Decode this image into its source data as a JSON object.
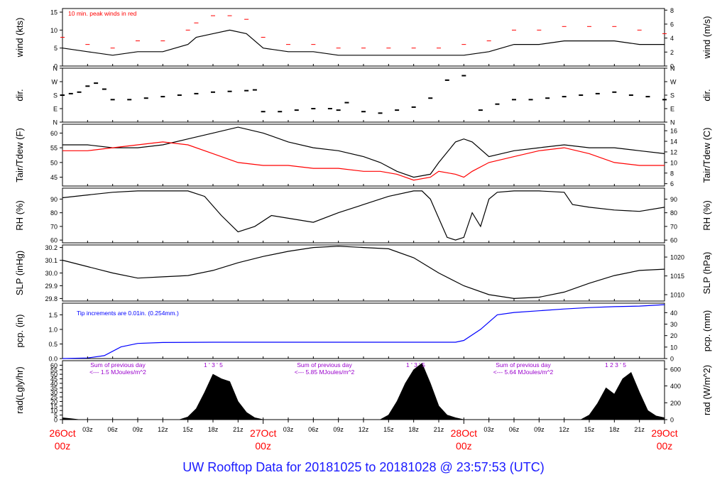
{
  "chart_data": {
    "type": "line",
    "title": "UW Rooftop Data for 20181025  to  20181028 @ 23:57:53  (UTC)",
    "x_axis": {
      "hour_ticks": [
        "03z",
        "06z",
        "09z",
        "12z",
        "15z",
        "18z",
        "21z",
        "03z",
        "06z",
        "09z",
        "12z",
        "15z",
        "18z",
        "21z",
        "03z",
        "06z",
        "09z",
        "12z",
        "15z",
        "18z",
        "21z"
      ],
      "date_ticks": [
        {
          "day": "26Oct",
          "hour": "00z"
        },
        {
          "day": "27Oct",
          "hour": "00z"
        },
        {
          "day": "28Oct",
          "hour": "00z"
        },
        {
          "day": "29Oct",
          "hour": "00z"
        }
      ],
      "range_hours": [
        0,
        72
      ]
    },
    "panels": [
      {
        "id": "wind",
        "ylabel_left": "wind (kts)",
        "ylabel_right": "wind (m/s)",
        "yticks_left": [
          "0",
          "5",
          "10",
          "15"
        ],
        "yticks_right": [
          "0",
          "2",
          "4",
          "6",
          "8"
        ],
        "ylim": [
          0,
          16
        ],
        "annotation": "10 min. peak winds in red",
        "series": [
          {
            "name": "wind speed",
            "color": "#000000",
            "x": [
              0,
              3,
              6,
              9,
              12,
              15,
              16,
              18,
              20,
              22,
              24,
              27,
              30,
              33,
              36,
              39,
              42,
              45,
              48,
              51,
              54,
              57,
              60,
              63,
              66,
              69,
              72
            ],
            "y": [
              5,
              4,
              3,
              4,
              4,
              6,
              8,
              9,
              10,
              9,
              5,
              4,
              4,
              3,
              3,
              3,
              3,
              3,
              3,
              4,
              6,
              6,
              7,
              7,
              7,
              6,
              6
            ]
          },
          {
            "name": "10 min. peak winds",
            "color": "#ff0000",
            "x": [
              0,
              3,
              6,
              9,
              12,
              15,
              16,
              18,
              20,
              22,
              24,
              27,
              30,
              33,
              36,
              39,
              42,
              45,
              48,
              51,
              54,
              57,
              60,
              63,
              66,
              69,
              72
            ],
            "y": [
              8,
              6,
              5,
              7,
              7,
              10,
              12,
              14,
              14,
              13,
              8,
              6,
              6,
              5,
              5,
              5,
              5,
              5,
              6,
              7,
              10,
              10,
              11,
              11,
              11,
              10,
              9
            ]
          }
        ]
      },
      {
        "id": "dir",
        "ylabel_left": "dir.",
        "ylabel_right": "dir.",
        "yticks_left": [
          "N",
          "E",
          "S",
          "W",
          "N"
        ],
        "yticks_right": [
          "N",
          "E",
          "S",
          "W",
          "N"
        ],
        "ylim": [
          0,
          360
        ],
        "series": [
          {
            "name": "wind direction",
            "color": "#000000",
            "x": [
              0,
              1,
              2,
              3,
              4,
              5,
              6,
              8,
              10,
              12,
              14,
              16,
              18,
              20,
              22,
              23,
              24,
              26,
              28,
              30,
              32,
              33,
              34,
              36,
              38,
              40,
              42,
              44,
              46,
              48,
              50,
              52,
              54,
              56,
              58,
              60,
              62,
              64,
              66,
              68,
              70,
              72
            ],
            "y": [
              180,
              190,
              200,
              240,
              260,
              220,
              150,
              150,
              160,
              170,
              180,
              190,
              200,
              205,
              210,
              215,
              70,
              70,
              80,
              90,
              90,
              80,
              130,
              70,
              60,
              80,
              100,
              160,
              280,
              310,
              80,
              120,
              150,
              150,
              160,
              170,
              180,
              190,
              200,
              180,
              170,
              150
            ]
          }
        ]
      },
      {
        "id": "temp",
        "ylabel_left": "Tair/Tdew (F)",
        "ylabel_right": "Tair/Tdew (C)",
        "yticks_left": [
          "45",
          "50",
          "55",
          "60"
        ],
        "yticks_right": [
          "6",
          "8",
          "10",
          "12",
          "14",
          "16"
        ],
        "ylim": [
          42,
          63
        ],
        "series": [
          {
            "name": "Tair",
            "color": "#000000",
            "x": [
              0,
              3,
              6,
              9,
              12,
              15,
              18,
              21,
              24,
              27,
              30,
              33,
              36,
              38,
              40,
              42,
              44,
              45,
              47,
              48,
              49,
              51,
              54,
              57,
              60,
              63,
              66,
              69,
              72
            ],
            "y": [
              56,
              56,
              55,
              55,
              56,
              58,
              60,
              62,
              60,
              57,
              55,
              54,
              52,
              50,
              47,
              45,
              46,
              50,
              57,
              58,
              57,
              52,
              54,
              55,
              56,
              55,
              55,
              54,
              53
            ]
          },
          {
            "name": "Tdew",
            "color": "#ff0000",
            "x": [
              0,
              3,
              6,
              9,
              12,
              15,
              18,
              21,
              24,
              27,
              30,
              33,
              36,
              38,
              40,
              42,
              44,
              45,
              47,
              48,
              49,
              51,
              54,
              57,
              60,
              63,
              66,
              69,
              72
            ],
            "y": [
              54,
              54,
              55,
              56,
              57,
              56,
              53,
              50,
              49,
              49,
              48,
              48,
              47,
              47,
              46,
              44,
              45,
              47,
              46,
              45,
              47,
              50,
              52,
              54,
              55,
              53,
              50,
              49,
              49
            ]
          }
        ]
      },
      {
        "id": "rh",
        "ylabel_left": "RH (%)",
        "ylabel_right": "RH (%)",
        "yticks_left": [
          "60",
          "70",
          "80",
          "90"
        ],
        "yticks_right": [
          "60",
          "70",
          "80",
          "90"
        ],
        "ylim": [
          58,
          98
        ],
        "series": [
          {
            "name": "RH",
            "color": "#000000",
            "x": [
              0,
              3,
              6,
              9,
              12,
              15,
              17,
              19,
              21,
              23,
              25,
              27,
              30,
              33,
              36,
              39,
              42,
              43,
              44,
              45,
              46,
              47,
              48,
              49,
              50,
              51,
              52,
              54,
              57,
              60,
              61,
              63,
              66,
              69,
              72
            ],
            "y": [
              91,
              93,
              95,
              96,
              96,
              96,
              92,
              78,
              66,
              70,
              78,
              76,
              73,
              80,
              86,
              92,
              96,
              96,
              90,
              76,
              62,
              60,
              62,
              80,
              70,
              90,
              95,
              96,
              96,
              95,
              86,
              84,
              82,
              81,
              84
            ]
          }
        ]
      },
      {
        "id": "slp",
        "ylabel_left": "SLP (inHg)",
        "ylabel_right": "SLP (hPa)",
        "yticks_left": [
          "29.8",
          "29.9",
          "30.0",
          "30.1",
          "30.2"
        ],
        "yticks_right": [
          "1010",
          "1015",
          "1020"
        ],
        "ylim": [
          29.78,
          30.22
        ],
        "series": [
          {
            "name": "SLP",
            "color": "#000000",
            "x": [
              0,
              3,
              6,
              9,
              12,
              15,
              18,
              21,
              24,
              27,
              30,
              33,
              36,
              39,
              42,
              45,
              48,
              51,
              54,
              57,
              60,
              63,
              66,
              69,
              72
            ],
            "y": [
              30.1,
              30.05,
              30.0,
              29.96,
              29.97,
              29.98,
              30.02,
              30.08,
              30.13,
              30.17,
              30.2,
              30.21,
              30.2,
              30.19,
              30.12,
              30.0,
              29.9,
              29.83,
              29.8,
              29.81,
              29.85,
              29.92,
              29.98,
              30.02,
              30.03
            ]
          }
        ]
      },
      {
        "id": "pcp",
        "ylabel_left": "pcp. (in)",
        "ylabel_right": "pcp. (mm)",
        "yticks_left": [
          "0.0",
          "0.5",
          "1.0",
          "1.5"
        ],
        "yticks_right": [
          "0",
          "10",
          "20",
          "30",
          "40"
        ],
        "ylim": [
          0,
          1.9
        ],
        "annotation": "Tip increments are 0.01in. (0.254mm.)",
        "series": [
          {
            "name": "precipitation",
            "color": "#0000ff",
            "x": [
              0,
              3,
              5,
              7,
              9,
              12,
              18,
              24,
              30,
              36,
              42,
              47,
              48,
              50,
              52,
              54,
              57,
              60,
              63,
              66,
              69,
              72
            ],
            "y": [
              0.0,
              0.02,
              0.1,
              0.4,
              0.52,
              0.55,
              0.56,
              0.56,
              0.56,
              0.56,
              0.56,
              0.56,
              0.62,
              1.0,
              1.5,
              1.58,
              1.64,
              1.7,
              1.75,
              1.78,
              1.8,
              1.85
            ]
          }
        ]
      },
      {
        "id": "rad",
        "ylabel_left": "rad(Lgly/hr)",
        "ylabel_right": "rad (W/m^2)",
        "yticks_left": [
          "0",
          "5",
          "10",
          "15",
          "20",
          "25",
          "30",
          "35",
          "40",
          "45",
          "50",
          "55",
          "60"
        ],
        "yticks_right": [
          "0",
          "200",
          "400",
          "600"
        ],
        "ylim": [
          0,
          65
        ],
        "series": [
          {
            "name": "solar radiation",
            "color": "#000000",
            "fill": true,
            "x": [
              0,
              1,
              2,
              3,
              14,
              15,
              16,
              17,
              18,
              19,
              20,
              21,
              22,
              23,
              24,
              38,
              39,
              40,
              41,
              42,
              43,
              44,
              45,
              46,
              47,
              48,
              62,
              63,
              64,
              65,
              66,
              67,
              68,
              69,
              70,
              71,
              72
            ],
            "y": [
              2,
              1,
              0,
              0,
              0,
              3,
              12,
              30,
              50,
              45,
              42,
              20,
              8,
              2,
              0,
              0,
              5,
              20,
              40,
              55,
              62,
              40,
              15,
              5,
              2,
              0,
              0,
              5,
              18,
              35,
              28,
              45,
              52,
              30,
              10,
              4,
              2
            ]
          }
        ],
        "day_markers": [
          {
            "label": "Sum of previous day",
            "value": "<--- 1.5 MJoules/m^2",
            "hours": "1  ' 3  '   5"
          },
          {
            "label": "Sum of previous day",
            "value": "<--- 5.85 MJoules/m^2",
            "hours": "1  ' 3  '  5"
          },
          {
            "label": "Sum of previous day",
            "value": "<--- 5.64 MJoules/m^2",
            "hours": "1   2   3  '  5"
          }
        ]
      }
    ]
  },
  "colors": {
    "title": "#1a1aff",
    "date_ticks": "#ff0000",
    "peak_wind": "#ff0000",
    "precip": "#0000ff",
    "rad_annotation": "#9900cc"
  }
}
